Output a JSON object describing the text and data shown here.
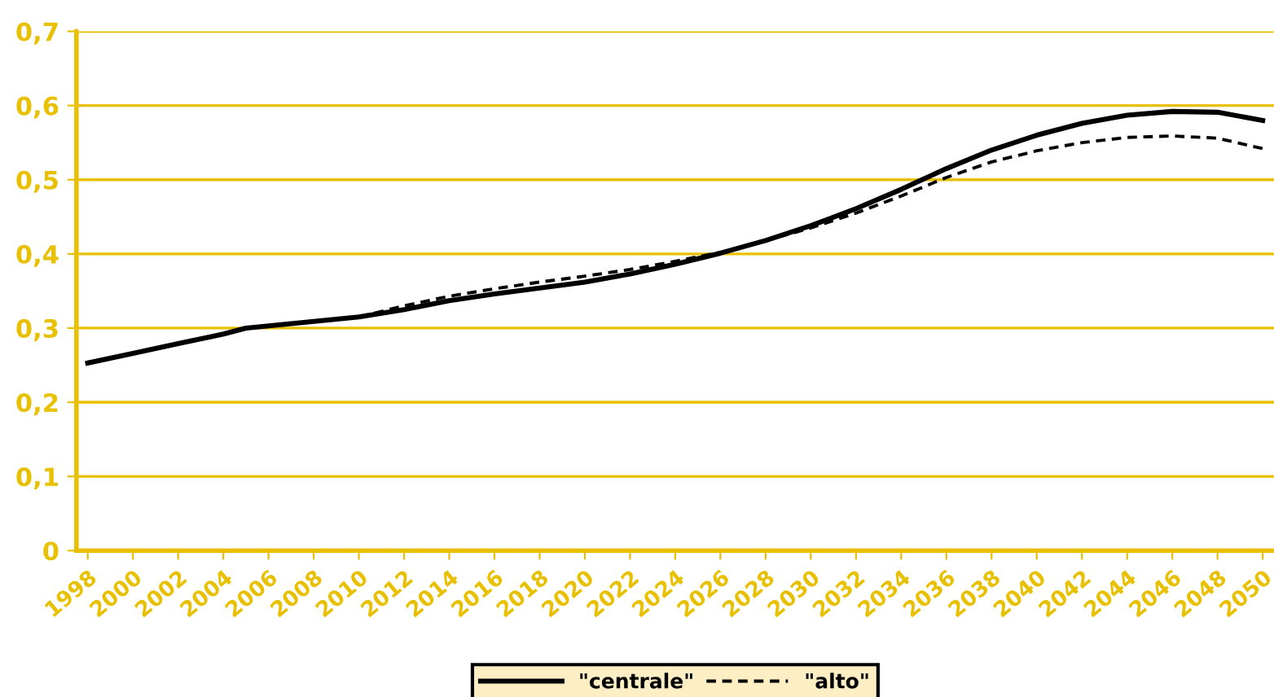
{
  "chart_data": {
    "type": "line",
    "x": [
      1998,
      2000,
      2002,
      2004,
      2005,
      2006,
      2008,
      2010,
      2012,
      2014,
      2016,
      2018,
      2020,
      2022,
      2024,
      2026,
      2028,
      2030,
      2032,
      2034,
      2036,
      2038,
      2040,
      2042,
      2044,
      2046,
      2048,
      2050
    ],
    "series": [
      {
        "name": "\"centrale\"",
        "color": "#000000",
        "line_style": "solid",
        "values": [
          0.253,
          0.266,
          0.279,
          0.292,
          0.3,
          0.303,
          0.309,
          0.315,
          0.325,
          0.337,
          0.346,
          0.354,
          0.362,
          0.373,
          0.386,
          0.401,
          0.418,
          0.438,
          0.461,
          0.487,
          0.515,
          0.54,
          0.56,
          0.576,
          0.587,
          0.592,
          0.591,
          0.58
        ]
      },
      {
        "name": "\"alto\"",
        "color": "#000000",
        "line_style": "dashed",
        "x": [
          2010,
          2012,
          2014,
          2016,
          2018,
          2020,
          2022,
          2024,
          2026,
          2028,
          2030,
          2032,
          2034,
          2036,
          2038,
          2040,
          2042,
          2044,
          2046,
          2048,
          2050
        ],
        "values": [
          0.315,
          0.33,
          0.343,
          0.353,
          0.362,
          0.37,
          0.379,
          0.39,
          0.402,
          0.418,
          0.435,
          0.455,
          0.478,
          0.503,
          0.524,
          0.539,
          0.55,
          0.557,
          0.559,
          0.556,
          0.542
        ]
      }
    ],
    "xlim": [
      1997.5,
      2050.5
    ],
    "xticks": [
      1998,
      2000,
      2002,
      2004,
      2006,
      2008,
      2010,
      2012,
      2014,
      2016,
      2018,
      2020,
      2022,
      2024,
      2026,
      2028,
      2030,
      2032,
      2034,
      2036,
      2038,
      2040,
      2042,
      2044,
      2046,
      2048,
      2050
    ],
    "ylim": [
      0,
      0.7
    ],
    "yticks": [
      0,
      {
        "value": 0.1,
        "label": "0,1"
      },
      {
        "value": 0.2,
        "label": "0,2"
      },
      {
        "value": 0.3,
        "label": "0,3"
      },
      {
        "value": 0.4,
        "label": "0,4"
      },
      {
        "value": 0.5,
        "label": "0,5"
      },
      {
        "value": 0.6,
        "label": "0,6"
      },
      {
        "value": 0.7,
        "label": "0,7"
      }
    ],
    "grid": "y",
    "legend": "bottom"
  }
}
